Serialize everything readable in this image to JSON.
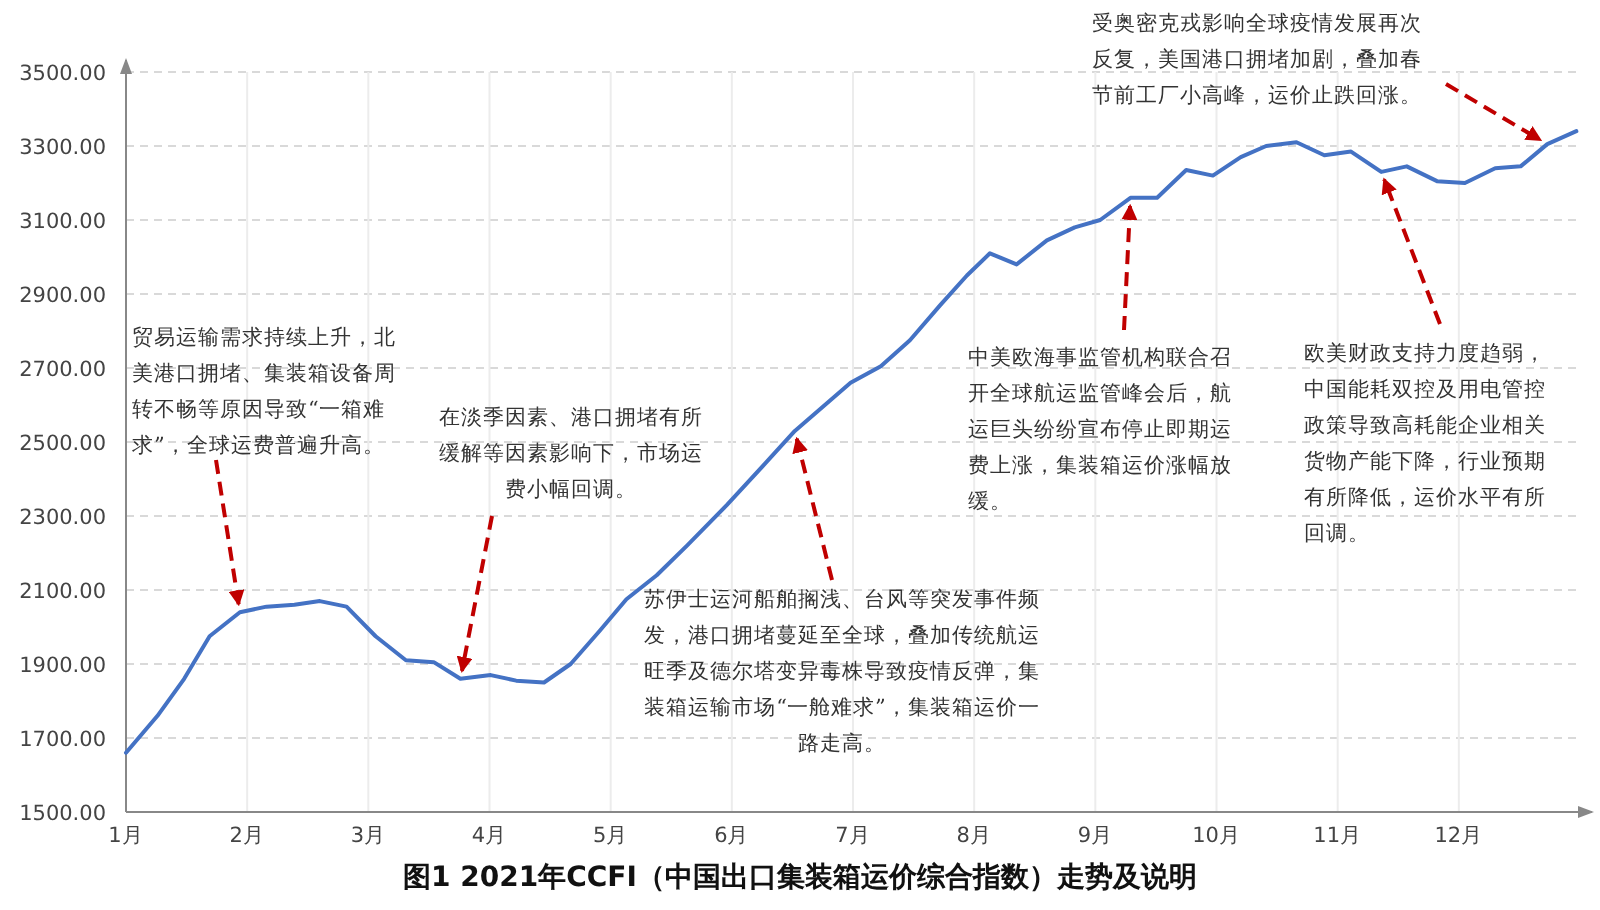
{
  "chart_data": {
    "type": "line",
    "title": "**图1 2021年CCFI（中国出口集装箱运价综合指数）走势及说明**",
    "x": [
      1.0,
      1.26,
      1.48,
      1.69,
      1.94,
      2.16,
      2.39,
      2.6,
      2.82,
      3.06,
      3.31,
      3.54,
      3.76,
      4.01,
      4.22,
      4.45,
      4.67,
      4.91,
      5.13,
      5.38,
      5.63,
      5.96,
      6.27,
      6.52,
      6.98,
      7.23,
      7.47,
      7.72,
      7.94,
      8.13,
      8.35,
      8.6,
      8.83,
      9.04,
      9.29,
      9.51,
      9.75,
      9.97,
      10.2,
      10.41,
      10.66,
      10.89,
      11.11,
      11.36,
      11.57,
      11.82,
      12.05,
      12.3,
      12.51,
      12.73,
      12.97
    ],
    "series": [
      {
        "color": "#4472c4",
        "values": [
          1660,
          1760,
          1860,
          1975,
          2040,
          2055,
          2060,
          2070,
          2055,
          1975,
          1910,
          1905,
          1860,
          1870,
          1855,
          1850,
          1900,
          1990,
          2075,
          2140,
          2220,
          2330,
          2440,
          2530,
          2660,
          2705,
          2775,
          2870,
          2950,
          3010,
          2980,
          3045,
          3080,
          3100,
          3160,
          3160,
          3235,
          3220,
          3270,
          3300,
          3310,
          3275,
          3285,
          3230,
          3245,
          3205,
          3200,
          3240,
          3245,
          3305,
          3340
        ]
      }
    ],
    "xlim": [
      1,
      13
    ],
    "ylim": [
      1500,
      3500
    ],
    "xticks": [
      {
        "value": 1,
        "label": "1月"
      },
      {
        "value": 2,
        "label": "2月"
      },
      {
        "value": 3,
        "label": "3月"
      },
      {
        "value": 4,
        "label": "4月"
      },
      {
        "value": 5,
        "label": "5月"
      },
      {
        "value": 6,
        "label": "6月"
      },
      {
        "value": 7,
        "label": "7月"
      },
      {
        "value": 8,
        "label": "8月"
      },
      {
        "value": 9,
        "label": "9月"
      },
      {
        "value": 10,
        "label": "10月"
      },
      {
        "value": 11,
        "label": "11月"
      },
      {
        "value": 12,
        "label": "12月"
      }
    ],
    "yticks": [
      {
        "value": 1500,
        "label": "1500.00"
      },
      {
        "value": 1700,
        "label": "1700.00"
      },
      {
        "value": 1900,
        "label": "1900.00"
      },
      {
        "value": 2100,
        "label": "2100.00"
      },
      {
        "value": 2300,
        "label": "2300.00"
      },
      {
        "value": 2500,
        "label": "2500.00"
      },
      {
        "value": 2700,
        "label": "2700.00"
      },
      {
        "value": 2900,
        "label": "2900.00"
      },
      {
        "value": 3100,
        "label": "3100.00"
      },
      {
        "value": 3300,
        "label": "3300.00"
      },
      {
        "value": 3500,
        "label": "3500.00"
      }
    ],
    "grid": true,
    "marker": "none",
    "line_style": "solid",
    "annotations": [
      {
        "text": "贸易运输需求持续上升，北美港口拥堵、集装箱设备周转不畅等原因导致“一箱难求”，全球运费普遍升高。",
        "x": 1.94,
        "y": 2040
      },
      {
        "text": "在淡季因素、港口拥堵有所缓解等因素影响下，市场运费小幅回调。",
        "x": 3.76,
        "y": 1860
      },
      {
        "text": "苏伊士运河船舶搁浅、台风等突发事件频发，港口拥堵蔓延至全球，叠加传统航运旺季及德尔塔变异毒株导致疫情反弹，集装箱运输市场“一舱难求”，集装箱运价一路走高。",
        "x": 6.52,
        "y": 2530
      },
      {
        "text": "中美欧海事监管机构联合召开全球航运监管峰会后，航运巨头纷纷宣布停止即期运费上涨，集装箱运价涨幅放缓。",
        "x": 9.29,
        "y": 3160
      },
      {
        "text": "欧美财政支持力度趋弱，中国能耗双控及用电管控政策导致高耗能企业相关货物产能下降，行业预期有所降低，运价水平有所回调。",
        "x": 11.36,
        "y": 3230
      },
      {
        "text": "受奥密克戎影响全球疫情发展再次反复，美国港口拥堵加剧，叠加春节前工厂小高峰，运价止跌回涨。",
        "x": 12.73,
        "y": 3305
      }
    ]
  }
}
